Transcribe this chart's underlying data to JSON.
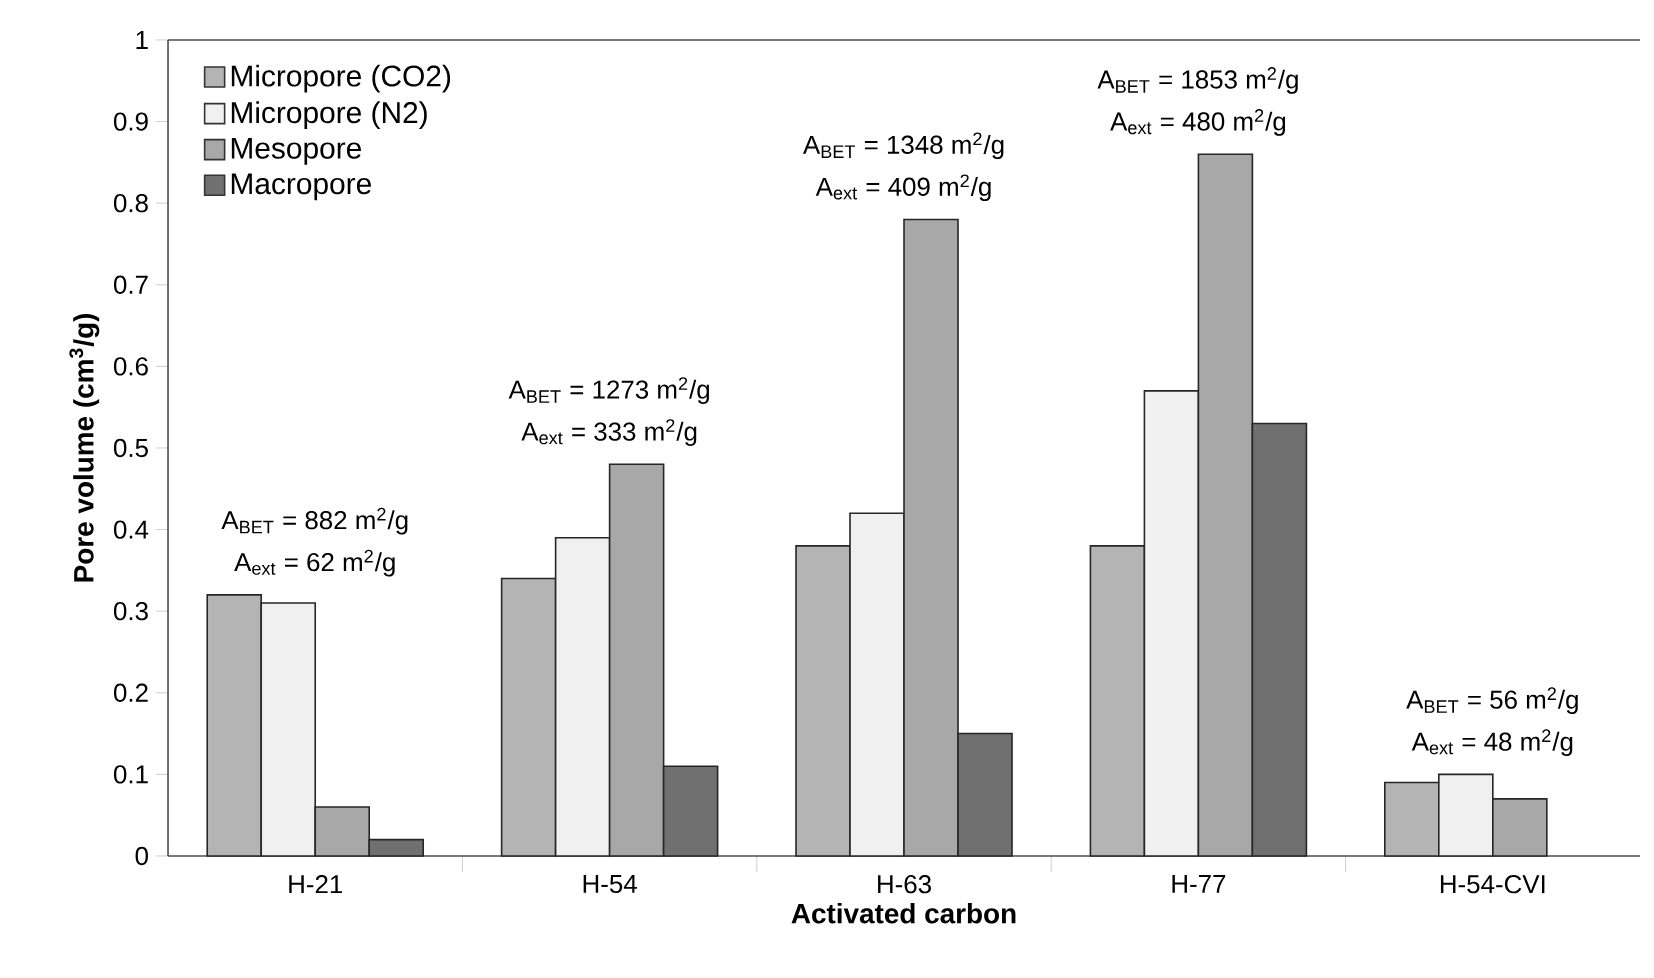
{
  "chart_data": {
    "type": "bar",
    "xlabel": "Activated carbon",
    "ylabel": "Pore volume (cm$^{3}$/g)",
    "categories": [
      "H-21",
      "H-54",
      "H-63",
      "H-77",
      "H-54-CVI"
    ],
    "series": [
      {
        "name": "Micropore (CO2)",
        "color": "#b4b4b4",
        "values": [
          0.32,
          0.34,
          0.38,
          0.38,
          0.09
        ]
      },
      {
        "name": "Micropore (N2)",
        "color": "#f0f0f0",
        "values": [
          0.31,
          0.39,
          0.42,
          0.57,
          0.1
        ]
      },
      {
        "name": "Mesopore",
        "color": "#a8a8a8",
        "values": [
          0.06,
          0.48,
          0.78,
          0.86,
          0.07
        ]
      },
      {
        "name": "Macropore",
        "color": "#707070",
        "values": [
          0.02,
          0.11,
          0.15,
          0.53,
          null
        ]
      }
    ],
    "ylim": [
      0,
      1
    ],
    "yticks": [
      0,
      0.1,
      0.2,
      0.3,
      0.4,
      0.5,
      0.6,
      0.7,
      0.8,
      0.9,
      1
    ],
    "legend": "top left",
    "grid": false,
    "annotations": [
      "A$_{BET}$ = 882 m$^{2}$/g",
      "A$_{ext}$ = 62 m$^{2}$/g",
      "A$_{BET}$ = 1273 m$^{2}$/g",
      "A$_{ext}$ = 333 m$^{2}$/g",
      "A$_{BET}$ = 1348 m$^{2}$/g",
      "A$_{ext}$ = 409 m$^{2}$/g",
      "A$_{BET}$ = 1853 m$^{2}$/g",
      "A$_{ext}$ = 480 m$^{2}$/g",
      "A$_{BET}$ = 56 m$^{2}$/g",
      "A$_{ext}$ = 48 m$^{2}$/g"
    ]
  }
}
